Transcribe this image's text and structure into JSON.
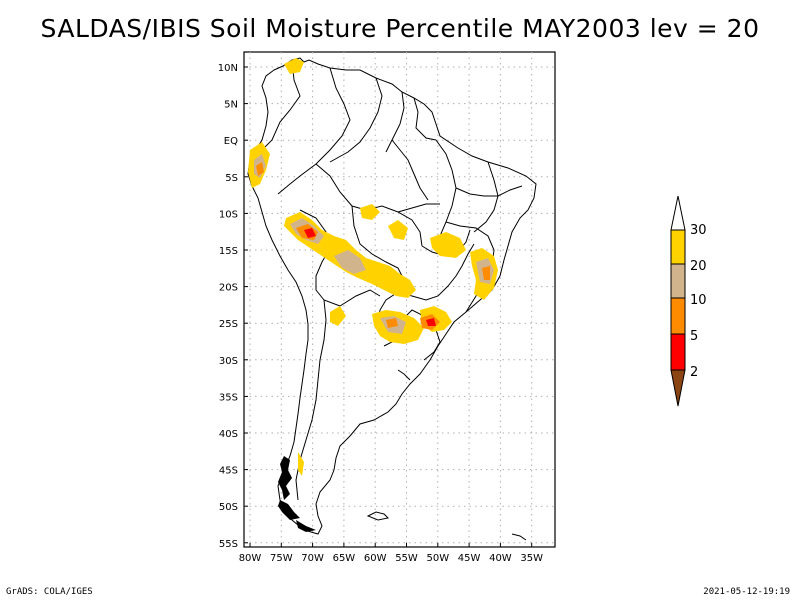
{
  "title": "SALDAS/IBIS Soil Moisture Percentile MAY2003 lev = 20",
  "lat_labels": [
    "10N",
    "5N",
    "EQ",
    "5S",
    "10S",
    "15S",
    "20S",
    "25S",
    "30S",
    "35S",
    "40S",
    "45S",
    "50S",
    "55S"
  ],
  "lon_labels": [
    "80W",
    "75W",
    "70W",
    "65W",
    "60W",
    "55W",
    "50W",
    "45W",
    "40W",
    "35W"
  ],
  "colorbar": {
    "labels": [
      "30",
      "20",
      "10",
      "5",
      "2"
    ],
    "colors": {
      "above_30": "#ffffff",
      "20_30": "#ffd200",
      "10_20": "#d2b48c",
      "5_10": "#ff8c00",
      "2_5": "#ff0000",
      "below_2": "#8b4513"
    }
  },
  "footer": {
    "left": "GrADS: COLA/IGES",
    "right": "2021-05-12-19:19"
  }
}
